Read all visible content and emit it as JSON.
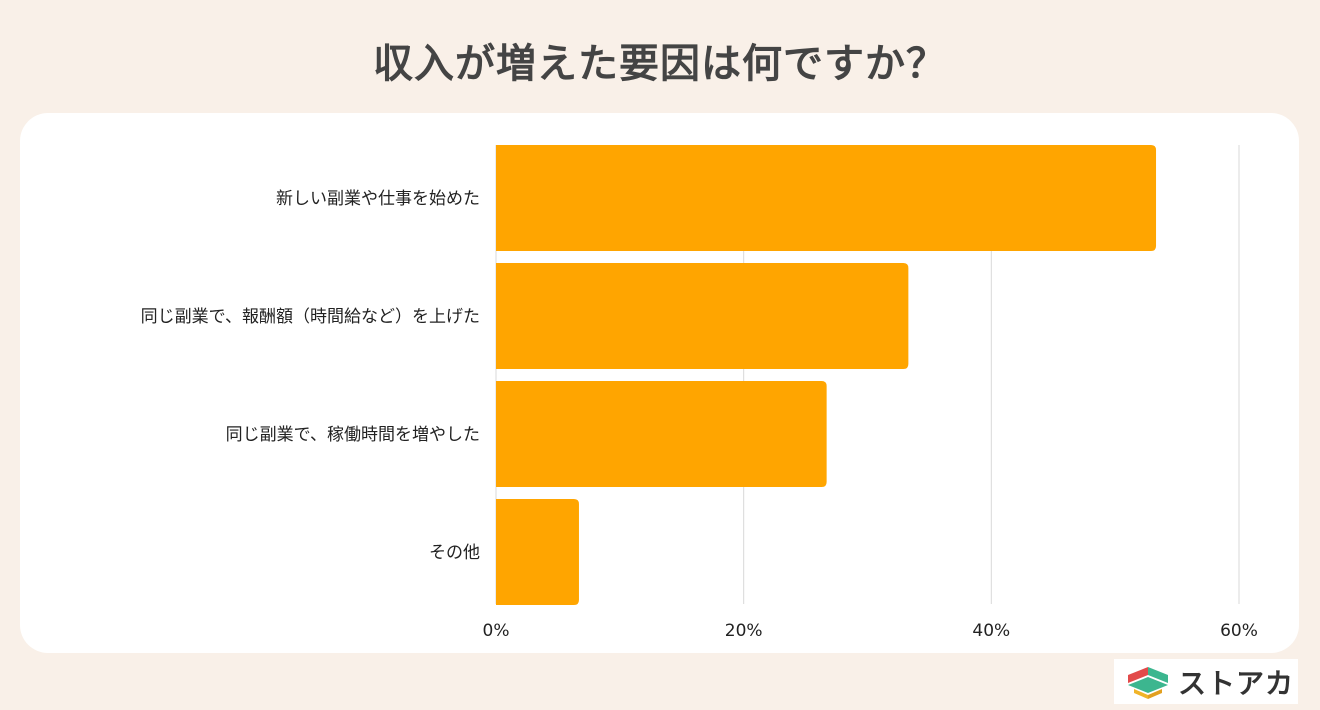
{
  "title": "収入が増えた要因は何ですか？",
  "chart_data": {
    "type": "bar",
    "orientation": "horizontal",
    "categories": [
      "新しい副業や仕事を始めた",
      "同じ副業で、報酬額（時間給など）を上げた",
      "同じ副業で、稼働時間を増やした",
      "その他"
    ],
    "values": [
      53.3,
      33.3,
      26.7,
      6.7
    ],
    "xlim": [
      0,
      60
    ],
    "xticks": [
      0,
      20,
      40,
      60
    ],
    "xtick_labels": [
      "0%",
      "20%",
      "40%",
      "60%"
    ],
    "grid": true,
    "bar_color": "#ffa500",
    "grid_color": "#d9d9d9"
  },
  "logo": {
    "text": "ストアカ",
    "colors": [
      "#e24a4a",
      "#3cb68f",
      "#f0b429"
    ]
  }
}
